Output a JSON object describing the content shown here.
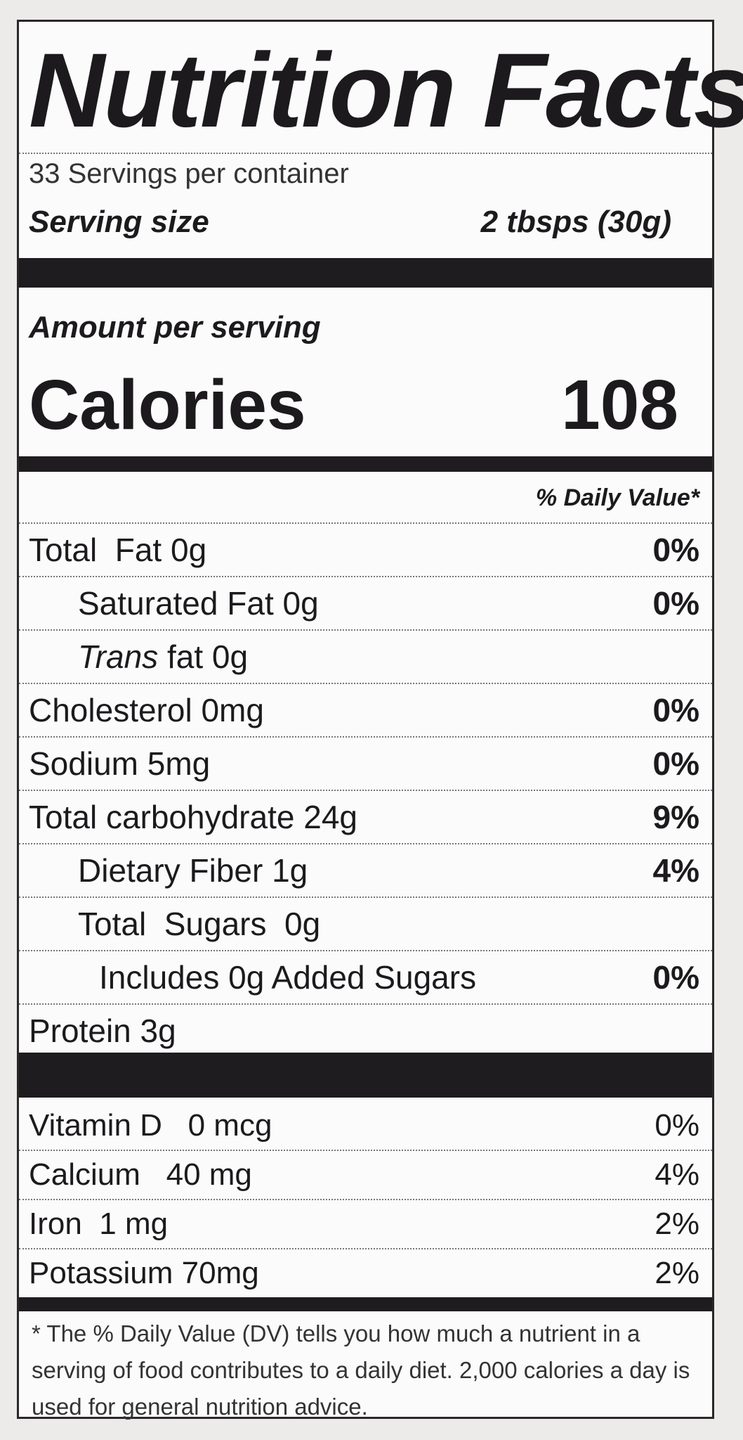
{
  "title": "Nutrition Facts",
  "servings_per_container": "33 Servings per container",
  "serving_size": {
    "label": "Serving size",
    "value": "2 tbsps (30g)"
  },
  "amount_per_serving": "Amount per serving",
  "calories": {
    "label": "Calories",
    "value": "108"
  },
  "daily_value_header": "% Daily Value*",
  "nutrients": [
    {
      "name": "Total  Fat",
      "amount": " 0g",
      "dv": "0%",
      "bold": true,
      "indent": 0
    },
    {
      "name": "Saturated Fat 0g",
      "amount": "",
      "dv": "0%",
      "bold": false,
      "indent": 1
    },
    {
      "name": "Trans",
      "amount": " fat 0g",
      "dv": "",
      "bold": false,
      "italic_name": true,
      "indent": 1
    },
    {
      "name": "Cholesterol",
      "amount": " 0mg",
      "dv": "0%",
      "bold": true,
      "indent": 0
    },
    {
      "name": "Sodium",
      "amount": " 5mg",
      "dv": "0%",
      "bold": true,
      "indent": 0
    },
    {
      "name": "Total carbohydrate",
      "amount": " 24g",
      "dv": "9%",
      "bold": true,
      "indent": 0
    },
    {
      "name": "Dietary Fiber 1g",
      "amount": "",
      "dv": "4%",
      "bold": false,
      "indent": 2
    },
    {
      "name": "Total  Sugars  0g",
      "amount": "",
      "dv": "",
      "bold": false,
      "indent": 2
    },
    {
      "name": "Includes 0g Added Sugars",
      "amount": "",
      "dv": "0%",
      "bold": false,
      "indent": 3
    },
    {
      "name": "Protein",
      "amount": " 3g",
      "dv": "",
      "bold": true,
      "indent": 0
    }
  ],
  "vitamins": [
    {
      "name": "Vitamin D   0 mcg",
      "dv": "0%"
    },
    {
      "name": "Calcium   40 mg",
      "dv": "4%"
    },
    {
      "name": "Iron  1 mg",
      "dv": "2%"
    },
    {
      "name": "Potassium 70mg",
      "dv": "2%"
    }
  ],
  "footnote": "* The % Daily Value (DV) tells you how much a nutrient in a serving of food contributes to a daily diet. 2,000 calories a day is used for general nutrition advice."
}
